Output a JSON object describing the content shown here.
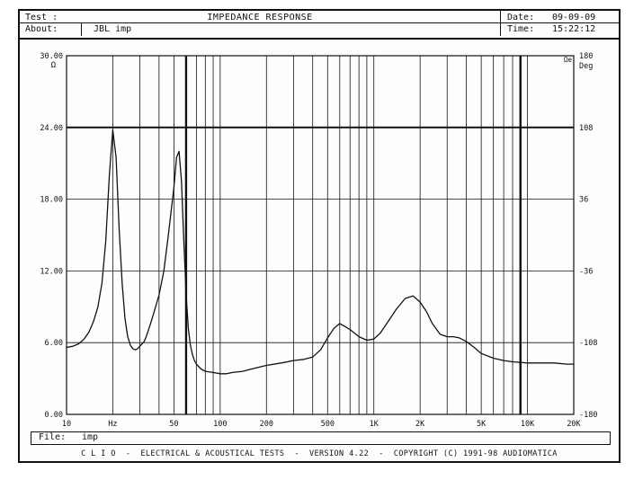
{
  "header": {
    "test_label": "Test :",
    "title": "IMPEDANCE RESPONSE",
    "date_label": "Date:",
    "date_value": "09-09-09",
    "about_label": "About:",
    "about_value": "JBL imp",
    "time_label": "Time:",
    "time_value": "15:22:12"
  },
  "file": {
    "label": "File:",
    "value": "imp"
  },
  "footer": {
    "text": "C L I O  -  ELECTRICAL & ACOUSTICAL TESTS  -  VERSION 4.22  -  COPYRIGHT (C) 1991-98 AUDIOMATICA"
  },
  "colors": {
    "line": "#111111",
    "background": "#fdfdfb"
  },
  "chart_data": {
    "type": "line",
    "title": "IMPEDANCE RESPONSE",
    "x_scale": "log",
    "xlim": [
      10,
      20000
    ],
    "x_ticks": [
      {
        "value": 10,
        "label": "10"
      },
      {
        "value": 20,
        "label": "Hz"
      },
      {
        "value": 50,
        "label": "50"
      },
      {
        "value": 100,
        "label": "100"
      },
      {
        "value": 200,
        "label": "200"
      },
      {
        "value": 500,
        "label": "500"
      },
      {
        "value": 1000,
        "label": "1K"
      },
      {
        "value": 2000,
        "label": "2K"
      },
      {
        "value": 5000,
        "label": "5K"
      },
      {
        "value": 10000,
        "label": "10K"
      },
      {
        "value": 20000,
        "label": "20K"
      }
    ],
    "ylim": [
      0,
      30
    ],
    "y_ticks": [
      "0.00",
      "6.00",
      "12.00",
      "18.00",
      "24.00",
      "30.00"
    ],
    "y_tick_values": [
      0,
      6,
      12,
      18,
      24,
      30
    ],
    "y_unit": "Ω",
    "y2lim": [
      -180,
      180
    ],
    "y2_ticks": [
      "-180",
      "-108",
      "-36",
      "36",
      "108",
      "180"
    ],
    "y2_tick_values": [
      -180,
      -108,
      -36,
      36,
      108,
      180
    ],
    "y2_unit": "Deg",
    "corner_label": "Ωe",
    "grid": true,
    "emphasized_x": [
      60,
      9000
    ],
    "emphasized_y": [
      24
    ],
    "series": [
      {
        "x": [
          10,
          11,
          12,
          13,
          14,
          15,
          16,
          17,
          18,
          19,
          20,
          21,
          22,
          23,
          24,
          25,
          26,
          27,
          28,
          29,
          30,
          31,
          32,
          33,
          34,
          35,
          37,
          40,
          43,
          46,
          50,
          52,
          54,
          56,
          58,
          60,
          62,
          64,
          66,
          68,
          70,
          75,
          80,
          90,
          100,
          110,
          120,
          140,
          160,
          200,
          250,
          300,
          350,
          400,
          450,
          500,
          550,
          600,
          700,
          800,
          900,
          1000,
          1100,
          1200,
          1400,
          1600,
          1800,
          2000,
          2200,
          2400,
          2700,
          3000,
          3300,
          3600,
          4000,
          4500,
          5000,
          6000,
          7000,
          8000,
          10000,
          12000,
          15000,
          18000,
          20000
        ],
        "y": [
          5.6,
          5.7,
          5.9,
          6.3,
          6.9,
          7.8,
          9.0,
          11.0,
          14.5,
          20.0,
          23.8,
          21.5,
          15.5,
          11.0,
          8.0,
          6.5,
          5.8,
          5.5,
          5.4,
          5.5,
          5.7,
          5.9,
          6.1,
          6.5,
          7.0,
          7.5,
          8.5,
          10.0,
          12.0,
          15.0,
          19.0,
          21.5,
          22.0,
          19.5,
          14.5,
          10.0,
          7.2,
          5.8,
          5.0,
          4.5,
          4.2,
          3.8,
          3.6,
          3.5,
          3.4,
          3.4,
          3.5,
          3.6,
          3.8,
          4.1,
          4.3,
          4.5,
          4.6,
          4.8,
          5.4,
          6.4,
          7.2,
          7.6,
          7.1,
          6.5,
          6.2,
          6.3,
          6.8,
          7.5,
          8.8,
          9.7,
          9.9,
          9.4,
          8.6,
          7.6,
          6.7,
          6.5,
          6.5,
          6.4,
          6.1,
          5.6,
          5.1,
          4.7,
          4.5,
          4.4,
          4.3,
          4.3,
          4.3,
          4.2,
          4.2
        ]
      }
    ]
  }
}
